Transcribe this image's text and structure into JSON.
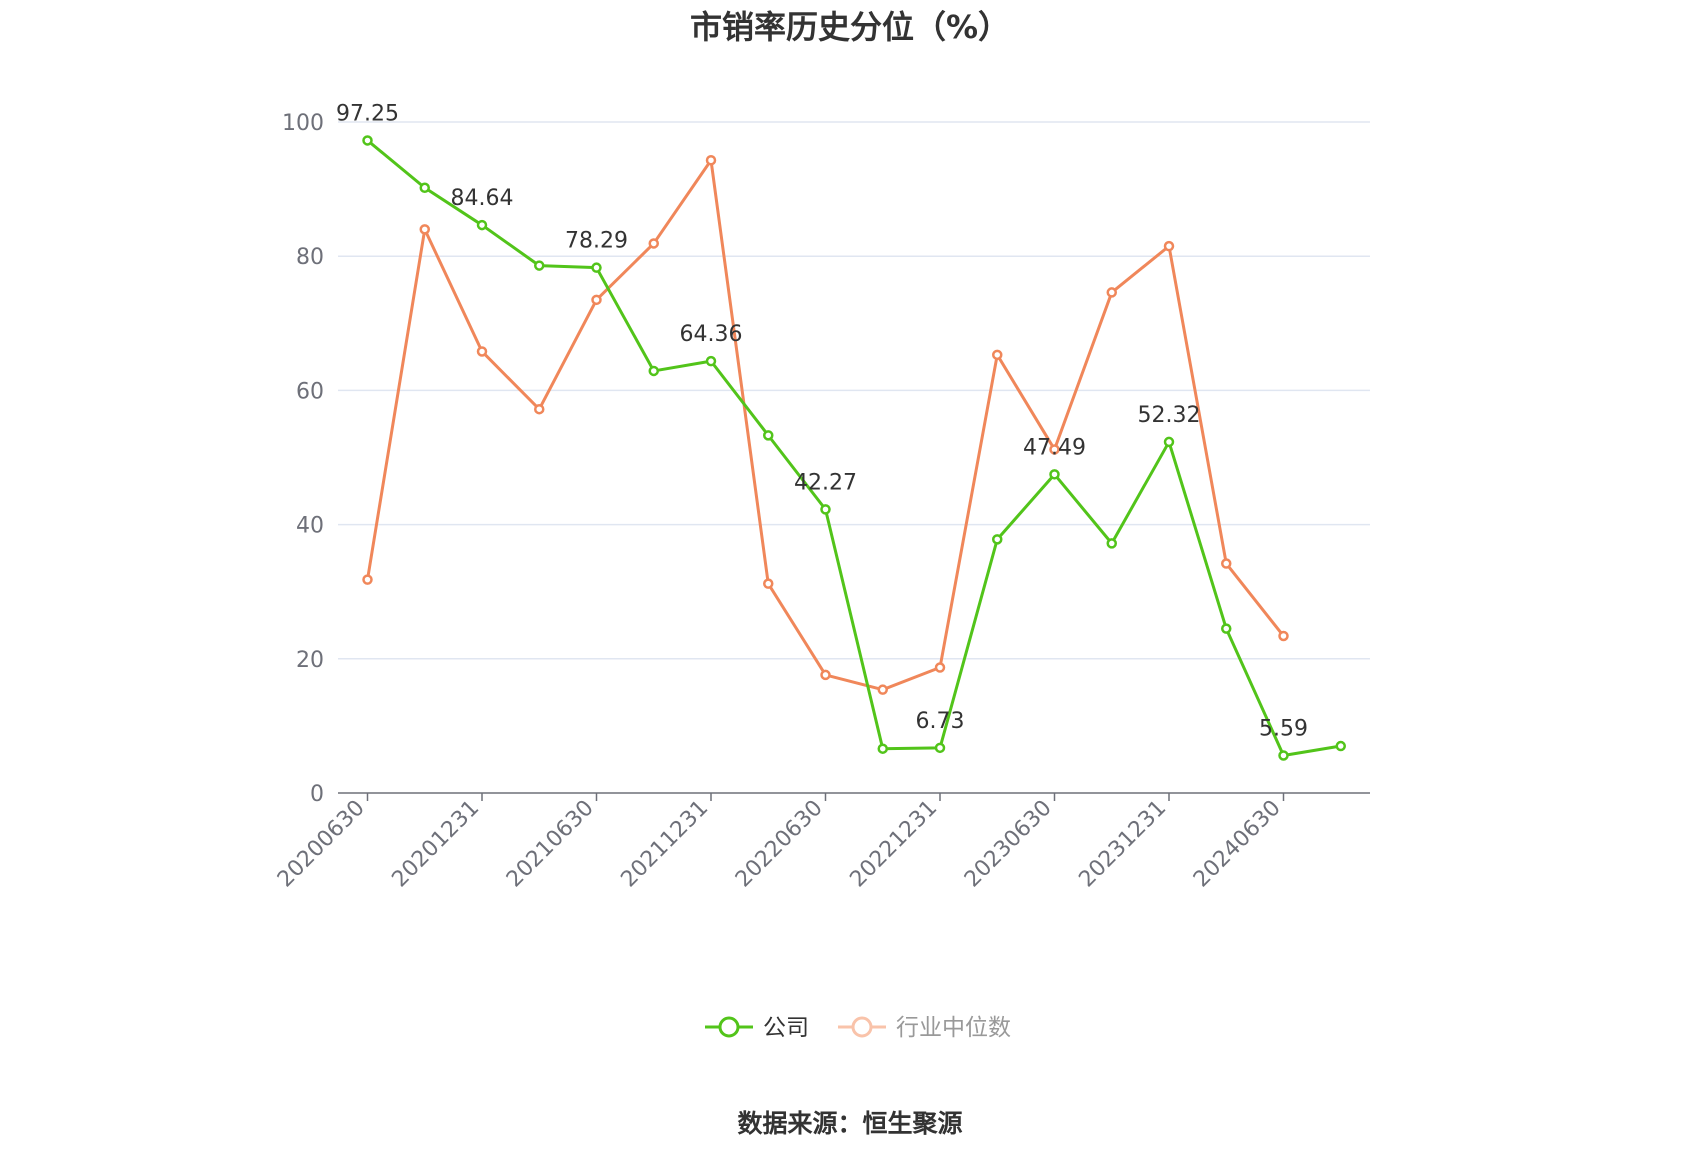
{
  "chart_data": {
    "type": "line",
    "title": "市销率历史分位（%）",
    "source": "数据来源：恒生聚源",
    "ylim": [
      0,
      100
    ],
    "yticks": [
      0,
      20,
      40,
      60,
      80,
      100
    ],
    "x": [
      "20200630",
      "20200930",
      "20201231",
      "20210331",
      "20210630",
      "20210930",
      "20211231",
      "20220331",
      "20220630",
      "20220930",
      "20221231",
      "20230331",
      "20230630",
      "20230930",
      "20231231",
      "20240331",
      "20240630",
      "20240930"
    ],
    "x_tick_labels": [
      "20200630",
      "20201231",
      "20210630",
      "20211231",
      "20220630",
      "20221231",
      "20230630",
      "20231231",
      "20240630"
    ],
    "grid": true,
    "legend_position": "bottom",
    "series": [
      {
        "name": "公司",
        "color": "#52c41a",
        "values": [
          97.25,
          90.2,
          84.64,
          78.6,
          78.29,
          62.9,
          64.36,
          53.3,
          42.27,
          6.6,
          6.73,
          37.8,
          47.49,
          37.2,
          52.32,
          24.5,
          5.59,
          7.0
        ],
        "labels": {
          "0": "97.25",
          "2": "84.64",
          "4": "78.29",
          "6": "64.36",
          "8": "42.27",
          "10": "6.73",
          "12": "47.49",
          "14": "52.32",
          "16": "5.59"
        }
      },
      {
        "name": "行业中位数",
        "color": "#f0875a",
        "values": [
          31.8,
          84.0,
          65.8,
          57.2,
          73.5,
          81.9,
          94.3,
          31.2,
          17.6,
          15.4,
          18.7,
          65.3,
          51.2,
          74.6,
          81.5,
          34.2,
          23.4,
          null
        ]
      }
    ]
  }
}
